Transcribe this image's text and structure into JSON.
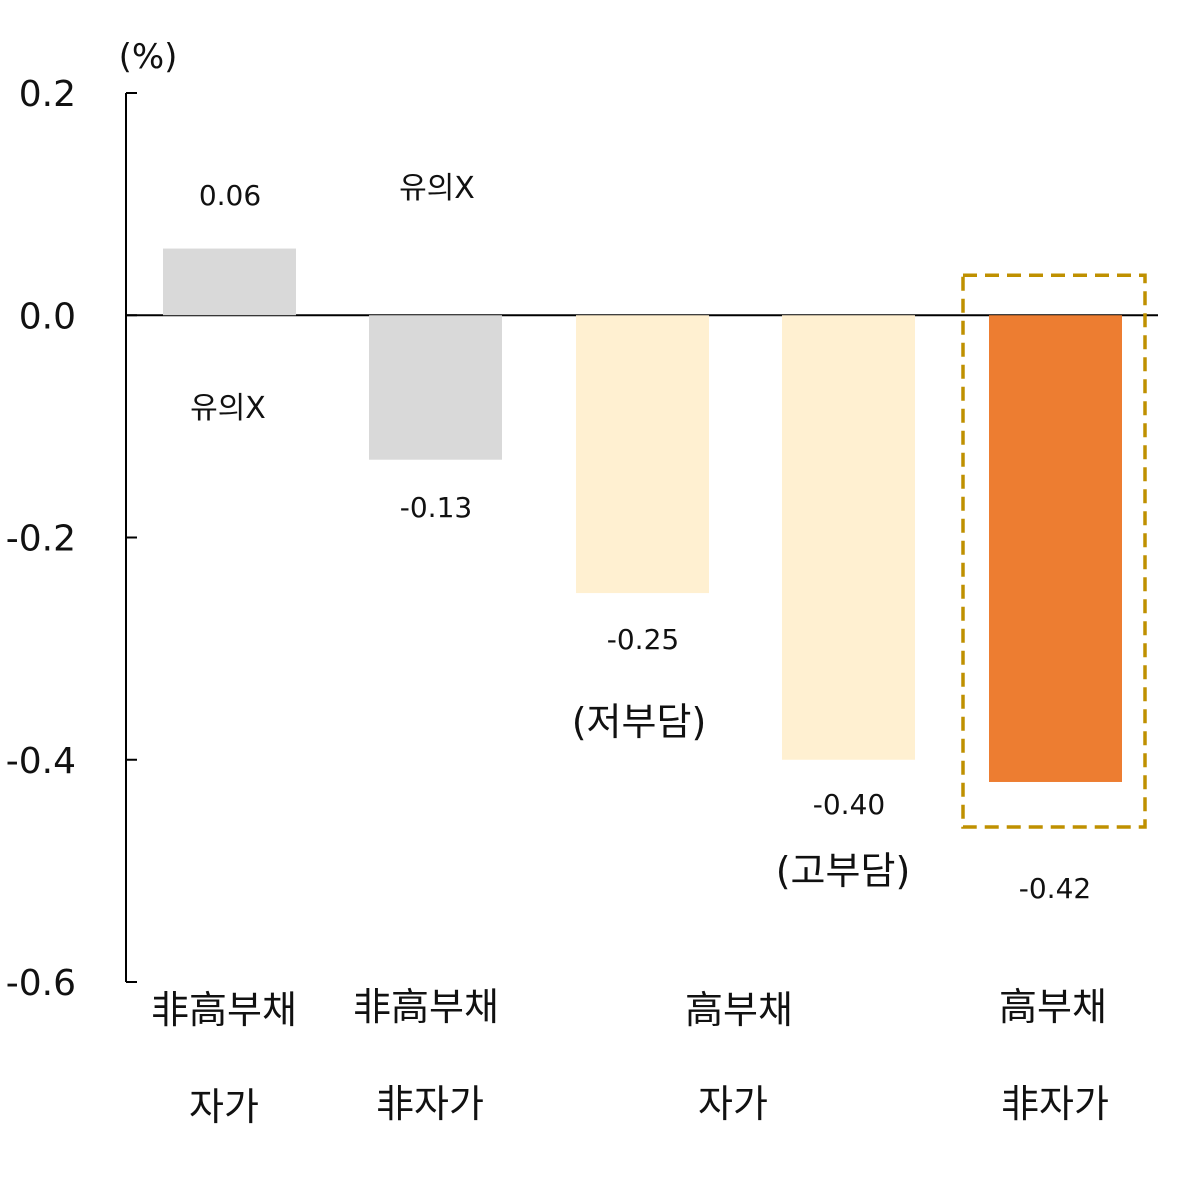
{
  "chart_data": {
    "type": "bar",
    "unit_label": "(%)",
    "ylim": [
      -0.6,
      0.2
    ],
    "yticks": [
      "0.2",
      "0.0",
      "-0.2",
      "-0.4",
      "-0.6"
    ],
    "ytick_values": [
      0.2,
      0.0,
      -0.2,
      -0.4,
      -0.6
    ],
    "grid": false,
    "legend": "none",
    "bars": [
      {
        "value": 0.06,
        "label": "0.06",
        "color": "#d9d9d9"
      },
      {
        "value": -0.13,
        "label": "-0.13",
        "color": "#d9d9d9"
      },
      {
        "value": -0.25,
        "label": "-0.25",
        "color": "#fff0d1"
      },
      {
        "value": -0.4,
        "label": "-0.40",
        "color": "#fff0d1"
      },
      {
        "value": -0.42,
        "label": "-0.42",
        "color": "#ed7d31"
      }
    ],
    "annotations": {
      "insignificant_1": "유의X",
      "insignificant_2": "유의X",
      "low_burden": "(저부담)",
      "high_burden": "(고부담)"
    },
    "highlight_color": "#bf9000",
    "category_groups": [
      {
        "line1": "非高부채",
        "line2": "자가"
      },
      {
        "line1": "非高부채",
        "line2": "非자가"
      },
      {
        "line1": "高부채",
        "line2": "자가"
      },
      {
        "line1": "高부채",
        "line2": "非자가"
      }
    ]
  }
}
